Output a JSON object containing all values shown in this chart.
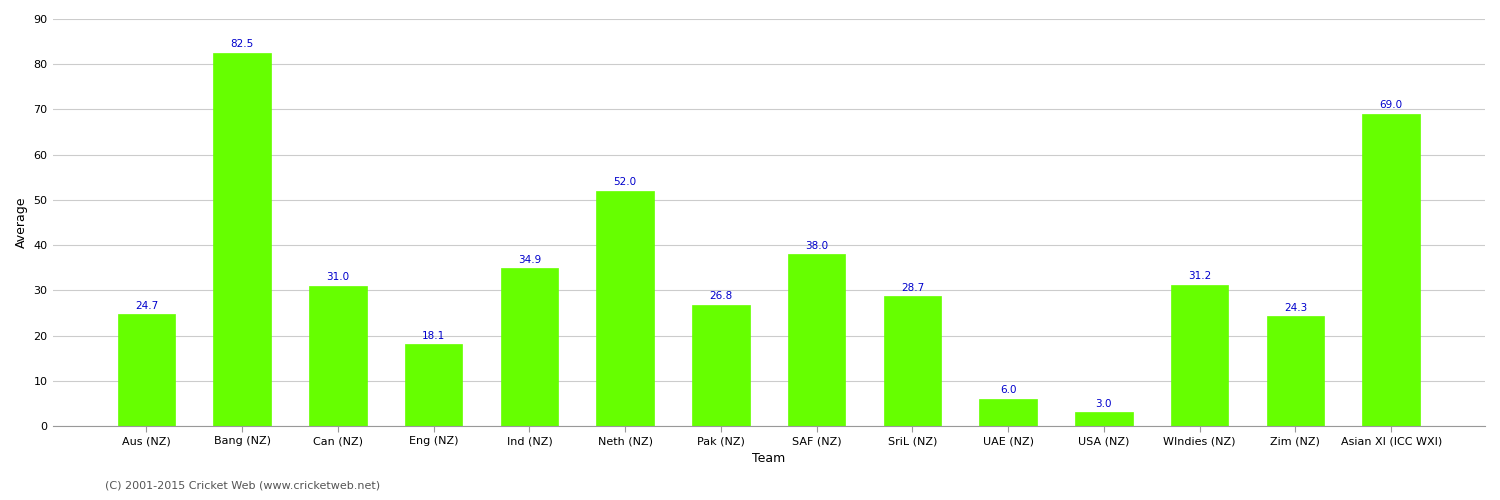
{
  "categories": [
    "Aus (NZ)",
    "Bang (NZ)",
    "Can (NZ)",
    "Eng (NZ)",
    "Ind (NZ)",
    "Neth (NZ)",
    "Pak (NZ)",
    "SAF (NZ)",
    "SriL (NZ)",
    "UAE (NZ)",
    "USA (NZ)",
    "WIndies (NZ)",
    "Zim (NZ)",
    "Asian XI (ICC WXI)"
  ],
  "values": [
    24.7,
    82.5,
    31.0,
    18.1,
    34.9,
    52.0,
    26.8,
    38.0,
    28.7,
    6.0,
    3.0,
    31.2,
    24.3,
    69.0
  ],
  "bar_color": "#66FF00",
  "bar_edge_color": "#66FF00",
  "label_color": "#0000CC",
  "ylabel": "Average",
  "xlabel": "Team",
  "ylim": [
    0,
    90
  ],
  "yticks": [
    0,
    10,
    20,
    30,
    40,
    50,
    60,
    70,
    80,
    90
  ],
  "grid_color": "#CCCCCC",
  "bg_color": "#FFFFFF",
  "label_fontsize": 7.5,
  "axis_label_fontsize": 9,
  "tick_fontsize": 8,
  "footer": "(C) 2001-2015 Cricket Web (www.cricketweb.net)"
}
